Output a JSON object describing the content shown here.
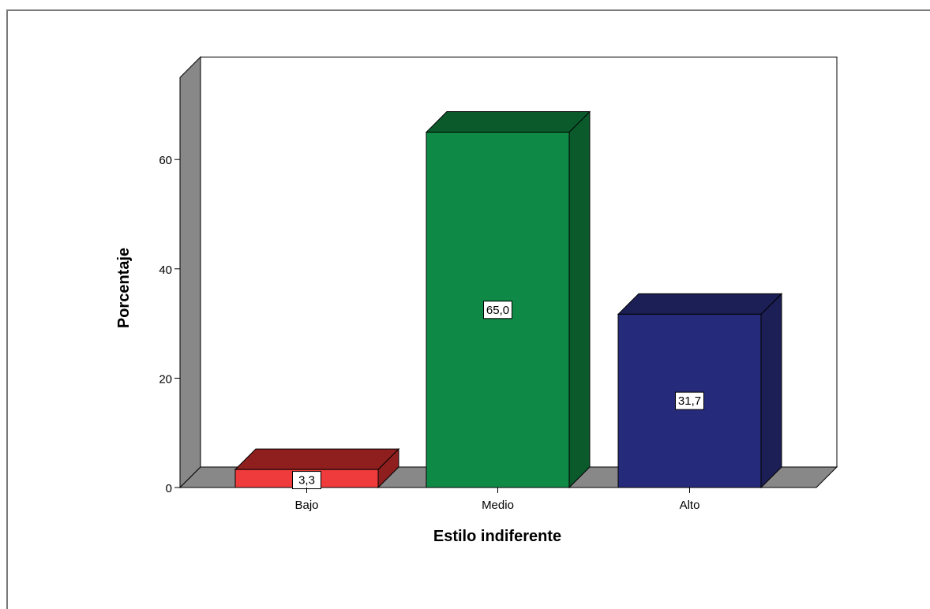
{
  "chart_data": {
    "type": "bar",
    "title": "",
    "xlabel": "Estilo indiferente",
    "ylabel": "Porcentaje",
    "categories": [
      "Bajo",
      "Medio",
      "Alto"
    ],
    "values": [
      3.3,
      65.0,
      31.7
    ],
    "value_labels": [
      "3,3",
      "65,0",
      "31,7"
    ],
    "ylim": [
      0,
      75
    ],
    "yticks": [
      0,
      20,
      40,
      60
    ],
    "ytick_labels": [
      "0",
      "20",
      "40",
      "60"
    ],
    "style": "3d",
    "grid": false,
    "legend": "none",
    "colors": {
      "Bajo": {
        "front": "#ef3b3b",
        "top": "#8f1f1f",
        "side": "#8f1f1f"
      },
      "Medio": {
        "front": "#0f8a46",
        "top": "#0a5a2b",
        "side": "#0a5a2b"
      },
      "Alto": {
        "front": "#262a7a",
        "top": "#1c1f55",
        "side": "#1c1f55"
      },
      "wall": "#888888",
      "edge": "#000000"
    }
  }
}
